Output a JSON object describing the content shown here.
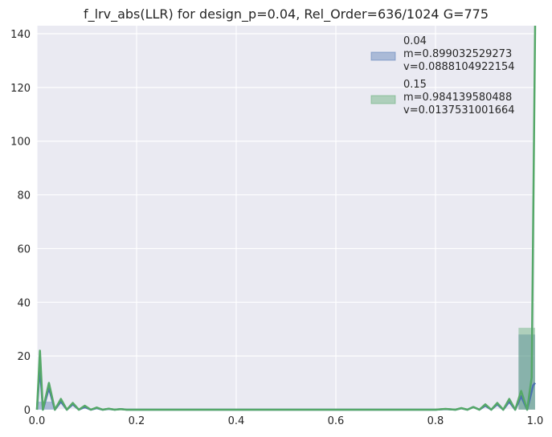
{
  "chart_data": {
    "type": "histogram+line",
    "title": "f_lrv_abs(LLR) for design_p=0.04, Rel_Order=636/1024 G=775",
    "xlabel": "",
    "ylabel": "",
    "xlim": [
      0.0,
      1.0
    ],
    "ylim": [
      0,
      143
    ],
    "grid": true,
    "legend_placement": "top-right",
    "x_ticks": [
      0.0,
      0.2,
      0.4,
      0.6,
      0.8,
      1.0
    ],
    "x_tick_labels": [
      "0.0",
      "0.2",
      "0.4",
      "0.6",
      "0.8",
      "1.0"
    ],
    "y_ticks": [
      0,
      20,
      40,
      60,
      80,
      100,
      120,
      140
    ],
    "y_tick_labels": [
      "0",
      "20",
      "40",
      "60",
      "80",
      "100",
      "120",
      "140"
    ],
    "series": [
      {
        "name": "0.04",
        "legend_lines": [
          "0.04",
          " m=0.899032529273",
          " v=0.0888104922154"
        ],
        "color": "#4c72b0",
        "bins": [
          {
            "x0": 0.0,
            "x1": 0.0333,
            "value": 3.0
          },
          {
            "x0": 0.9667,
            "x1": 1.0,
            "value": 28.0
          }
        ],
        "curve": {
          "x": [
            0.0,
            0.006,
            0.012,
            0.024,
            0.036,
            0.048,
            0.06,
            0.072,
            0.084,
            0.096,
            0.108,
            0.12,
            0.132,
            0.144,
            0.156,
            0.168,
            0.18,
            0.2,
            0.3,
            0.4,
            0.5,
            0.6,
            0.7,
            0.8,
            0.82,
            0.84,
            0.852,
            0.864,
            0.876,
            0.888,
            0.9,
            0.912,
            0.924,
            0.936,
            0.948,
            0.96,
            0.972,
            0.984,
            0.996,
            1.0
          ],
          "y": [
            0,
            16,
            0,
            8,
            0,
            3,
            0,
            2,
            0,
            1,
            0,
            0.6,
            0,
            0.3,
            0,
            0.2,
            0,
            0,
            0,
            0,
            0,
            0,
            0,
            0,
            0.2,
            0,
            0.5,
            0,
            1,
            0,
            1.5,
            0,
            2,
            0,
            3,
            0,
            5,
            0,
            9,
            10
          ]
        }
      },
      {
        "name": "0.15",
        "legend_lines": [
          "0.15",
          " m=0.984139580488",
          " v=0.0137531001664"
        ],
        "color": "#55a868",
        "bins": [
          {
            "x0": 0.0,
            "x1": 0.0333,
            "value": 0.0
          },
          {
            "x0": 0.9667,
            "x1": 1.0,
            "value": 30.5
          }
        ],
        "curve": {
          "x": [
            0.0,
            0.006,
            0.012,
            0.024,
            0.036,
            0.048,
            0.06,
            0.072,
            0.084,
            0.096,
            0.108,
            0.12,
            0.132,
            0.144,
            0.156,
            0.168,
            0.18,
            0.2,
            0.3,
            0.4,
            0.5,
            0.6,
            0.7,
            0.8,
            0.82,
            0.84,
            0.852,
            0.864,
            0.876,
            0.888,
            0.9,
            0.912,
            0.924,
            0.936,
            0.948,
            0.96,
            0.972,
            0.984,
            0.993,
            1.0
          ],
          "y": [
            0,
            22,
            0,
            10,
            0,
            4,
            0,
            2.5,
            0,
            1.5,
            0,
            0.8,
            0,
            0.4,
            0,
            0.2,
            0,
            0,
            0,
            0,
            0,
            0,
            0,
            0,
            0.3,
            0,
            0.6,
            0,
            1,
            0,
            2,
            0,
            2.5,
            0,
            4,
            0,
            7,
            0,
            12,
            143
          ]
        }
      }
    ]
  }
}
